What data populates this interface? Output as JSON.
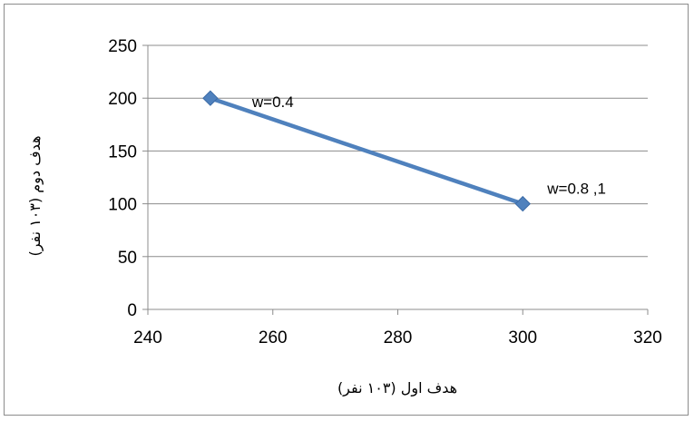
{
  "chart_data": {
    "type": "line",
    "xlabel": "هدف اول  (۱۰۳ نفر)",
    "ylabel": "هدف دوم (۱۰۳ نفر)",
    "xlim": [
      240,
      320
    ],
    "ylim": [
      0,
      250
    ],
    "x_ticks": [
      240,
      260,
      280,
      300,
      320
    ],
    "y_ticks": [
      0,
      50,
      100,
      150,
      200,
      250
    ],
    "grid": true,
    "series": [
      {
        "x": [
          250,
          300
        ],
        "y": [
          200,
          100
        ],
        "color": "#4f81bd",
        "marker": "diamond",
        "marker_color": "#4f81bd"
      }
    ],
    "annotations": [
      {
        "text": "w=0.4",
        "x": 250,
        "y": 200
      },
      {
        "text": "w=0.8 ,1",
        "x": 300,
        "y": 100
      }
    ]
  }
}
